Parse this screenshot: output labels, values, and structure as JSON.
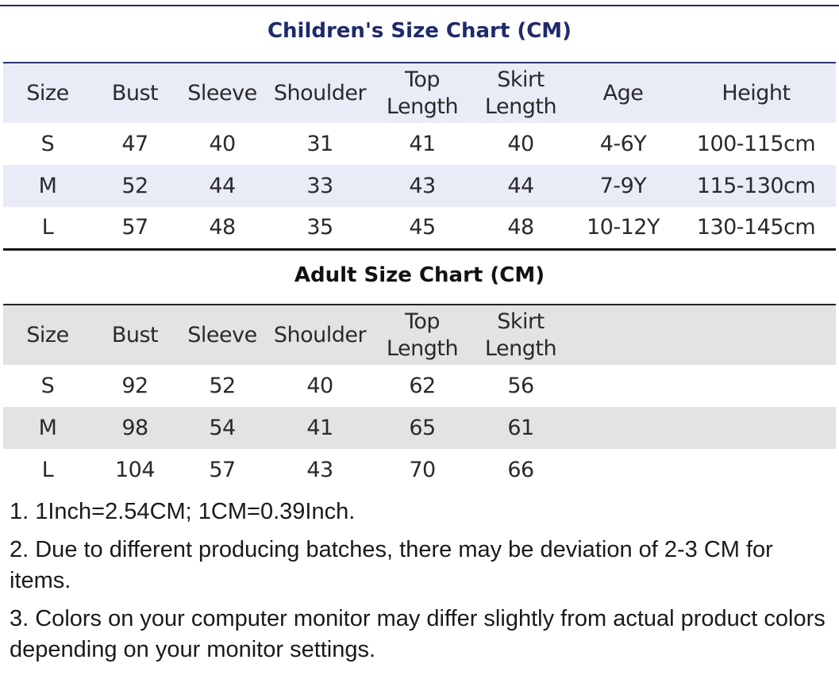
{
  "children": {
    "title": "Children's Size Chart (CM)",
    "headers": [
      "Size",
      "Bust",
      "Sleeve",
      "Shoulder",
      "Top\nLength",
      "Skirt\nLength",
      "Age",
      "Height"
    ],
    "rows": [
      [
        "S",
        "47",
        "40",
        "31",
        "41",
        "40",
        "4-6Y",
        "100-115cm"
      ],
      [
        "M",
        "52",
        "44",
        "33",
        "43",
        "44",
        "7-9Y",
        "115-130cm"
      ],
      [
        "L",
        "57",
        "48",
        "35",
        "45",
        "48",
        "10-12Y",
        "130-145cm"
      ]
    ]
  },
  "adult": {
    "title": "Adult Size Chart (CM)",
    "headers": [
      "Size",
      "Bust",
      "Sleeve",
      "Shoulder",
      "Top\nLength",
      "Skirt\nLength",
      "",
      ""
    ],
    "rows": [
      [
        "S",
        "92",
        "52",
        "40",
        "62",
        "56",
        "",
        ""
      ],
      [
        "M",
        "98",
        "54",
        "41",
        "65",
        "61",
        "",
        ""
      ],
      [
        "L",
        "104",
        "57",
        "43",
        "70",
        "66",
        "",
        ""
      ]
    ]
  },
  "notes": [
    "1. 1Inch=2.54CM; 1CM=0.39Inch.",
    "2. Due to different producing batches, there may be deviation of 2-3 CM for items.",
    "3. Colors on your computer monitor may differ slightly from actual product colors depending on your monitor settings."
  ]
}
